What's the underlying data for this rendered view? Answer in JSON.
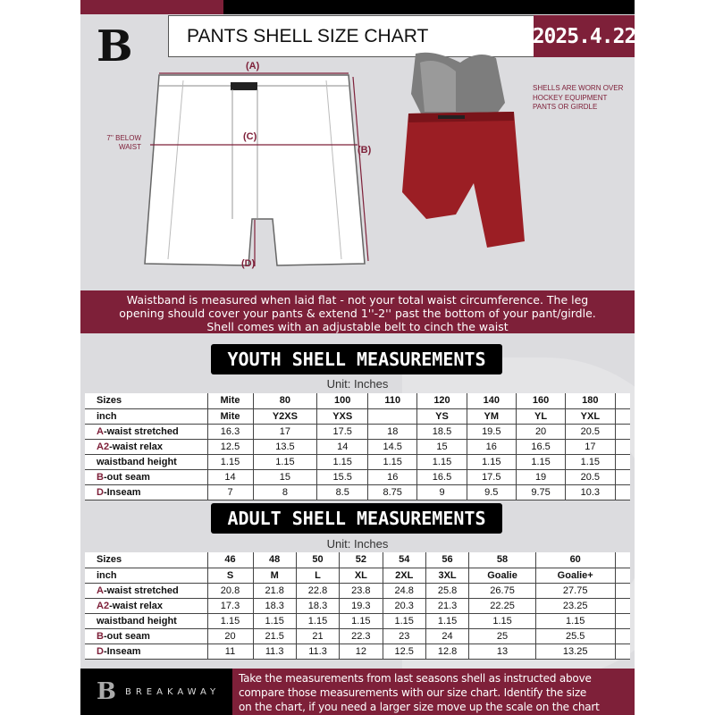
{
  "header": {
    "title": "PANTS SHELL SIZE CHART",
    "date": "2025.4.22",
    "logo_letter": "B"
  },
  "diagram": {
    "label_a": "(A)",
    "label_b": "(B)",
    "label_c": "(C)",
    "label_d": "(D)",
    "below_waist": "7'' BELOW WAIST"
  },
  "photo_note": "SHELLS ARE WORN OVER HOCKEY EQUIPMENT PANTS OR GIRDLE",
  "banner": [
    "Waistband is measured when laid flat - not your total waist circumference. The leg",
    "opening should cover your pants & extend 1''-2'' past the bottom of your pant/girdle.",
    "Shell comes with an adjustable belt to cinch the waist"
  ],
  "youth": {
    "title": "YOUTH SHELL MEASUREMENTS",
    "unit": "Unit: Inches",
    "rows": [
      {
        "letter": "",
        "label": "Sizes",
        "values": [
          "Mite",
          "80",
          "100",
          "110",
          "120",
          "140",
          "160",
          "180"
        ]
      },
      {
        "letter": "",
        "label": "inch",
        "values": [
          "Mite",
          "Y2XS",
          "YXS",
          "",
          "YS",
          "YM",
          "YL",
          "YXL"
        ]
      },
      {
        "letter": "A",
        "label": "-waist stretched",
        "values": [
          "16.3",
          "17",
          "17.5",
          "18",
          "18.5",
          "19.5",
          "20",
          "20.5"
        ]
      },
      {
        "letter": "A2",
        "label": "-waist relax",
        "values": [
          "12.5",
          "13.5",
          "14",
          "14.5",
          "15",
          "16",
          "16.5",
          "17"
        ]
      },
      {
        "letter": "",
        "label": "waistband height",
        "values": [
          "1.15",
          "1.15",
          "1.15",
          "1.15",
          "1.15",
          "1.15",
          "1.15",
          "1.15"
        ]
      },
      {
        "letter": "B",
        "label": "-out seam",
        "values": [
          "14",
          "15",
          "15.5",
          "16",
          "16.5",
          "17.5",
          "19",
          "20.5"
        ]
      },
      {
        "letter": "D",
        "label": "-Inseam",
        "values": [
          "7",
          "8",
          "8.5",
          "8.75",
          "9",
          "9.5",
          "9.75",
          "10.3"
        ]
      }
    ]
  },
  "adult": {
    "title": "ADULT SHELL MEASUREMENTS",
    "unit": "Unit: Inches",
    "rows": [
      {
        "letter": "",
        "label": "Sizes",
        "values": [
          "46",
          "48",
          "50",
          "52",
          "54",
          "56",
          "58",
          "60"
        ]
      },
      {
        "letter": "",
        "label": "inch",
        "values": [
          "S",
          "M",
          "L",
          "XL",
          "2XL",
          "3XL",
          "Goalie",
          "Goalie+"
        ]
      },
      {
        "letter": "A",
        "label": "-waist stretched",
        "values": [
          "20.8",
          "21.8",
          "22.8",
          "23.8",
          "24.8",
          "25.8",
          "26.75",
          "27.75"
        ]
      },
      {
        "letter": "A2",
        "label": "-waist relax",
        "values": [
          "17.3",
          "18.3",
          "18.3",
          "19.3",
          "20.3",
          "21.3",
          "22.25",
          "23.25"
        ]
      },
      {
        "letter": "",
        "label": "waistband height",
        "values": [
          "1.15",
          "1.15",
          "1.15",
          "1.15",
          "1.15",
          "1.15",
          "1.15",
          "1.15"
        ]
      },
      {
        "letter": "B",
        "label": "-out seam",
        "values": [
          "20",
          "21.5",
          "21",
          "22.3",
          "23",
          "24",
          "25",
          "25.5"
        ]
      },
      {
        "letter": "D",
        "label": "-Inseam",
        "values": [
          "11",
          "11.3",
          "11.3",
          "12",
          "12.5",
          "12.8",
          "13",
          "13.25"
        ]
      }
    ]
  },
  "footer": {
    "brand": "BREAKAWAY",
    "logo_letter": "B",
    "text": [
      "Take the measurements from last seasons shell as instructed above",
      "compare those measurements  with our size chart. Identify the size",
      "on the chart, if you need a larger size move up the scale on the chart"
    ]
  },
  "colors": {
    "accent": "#7e2039",
    "background": "#dcdcdf"
  }
}
